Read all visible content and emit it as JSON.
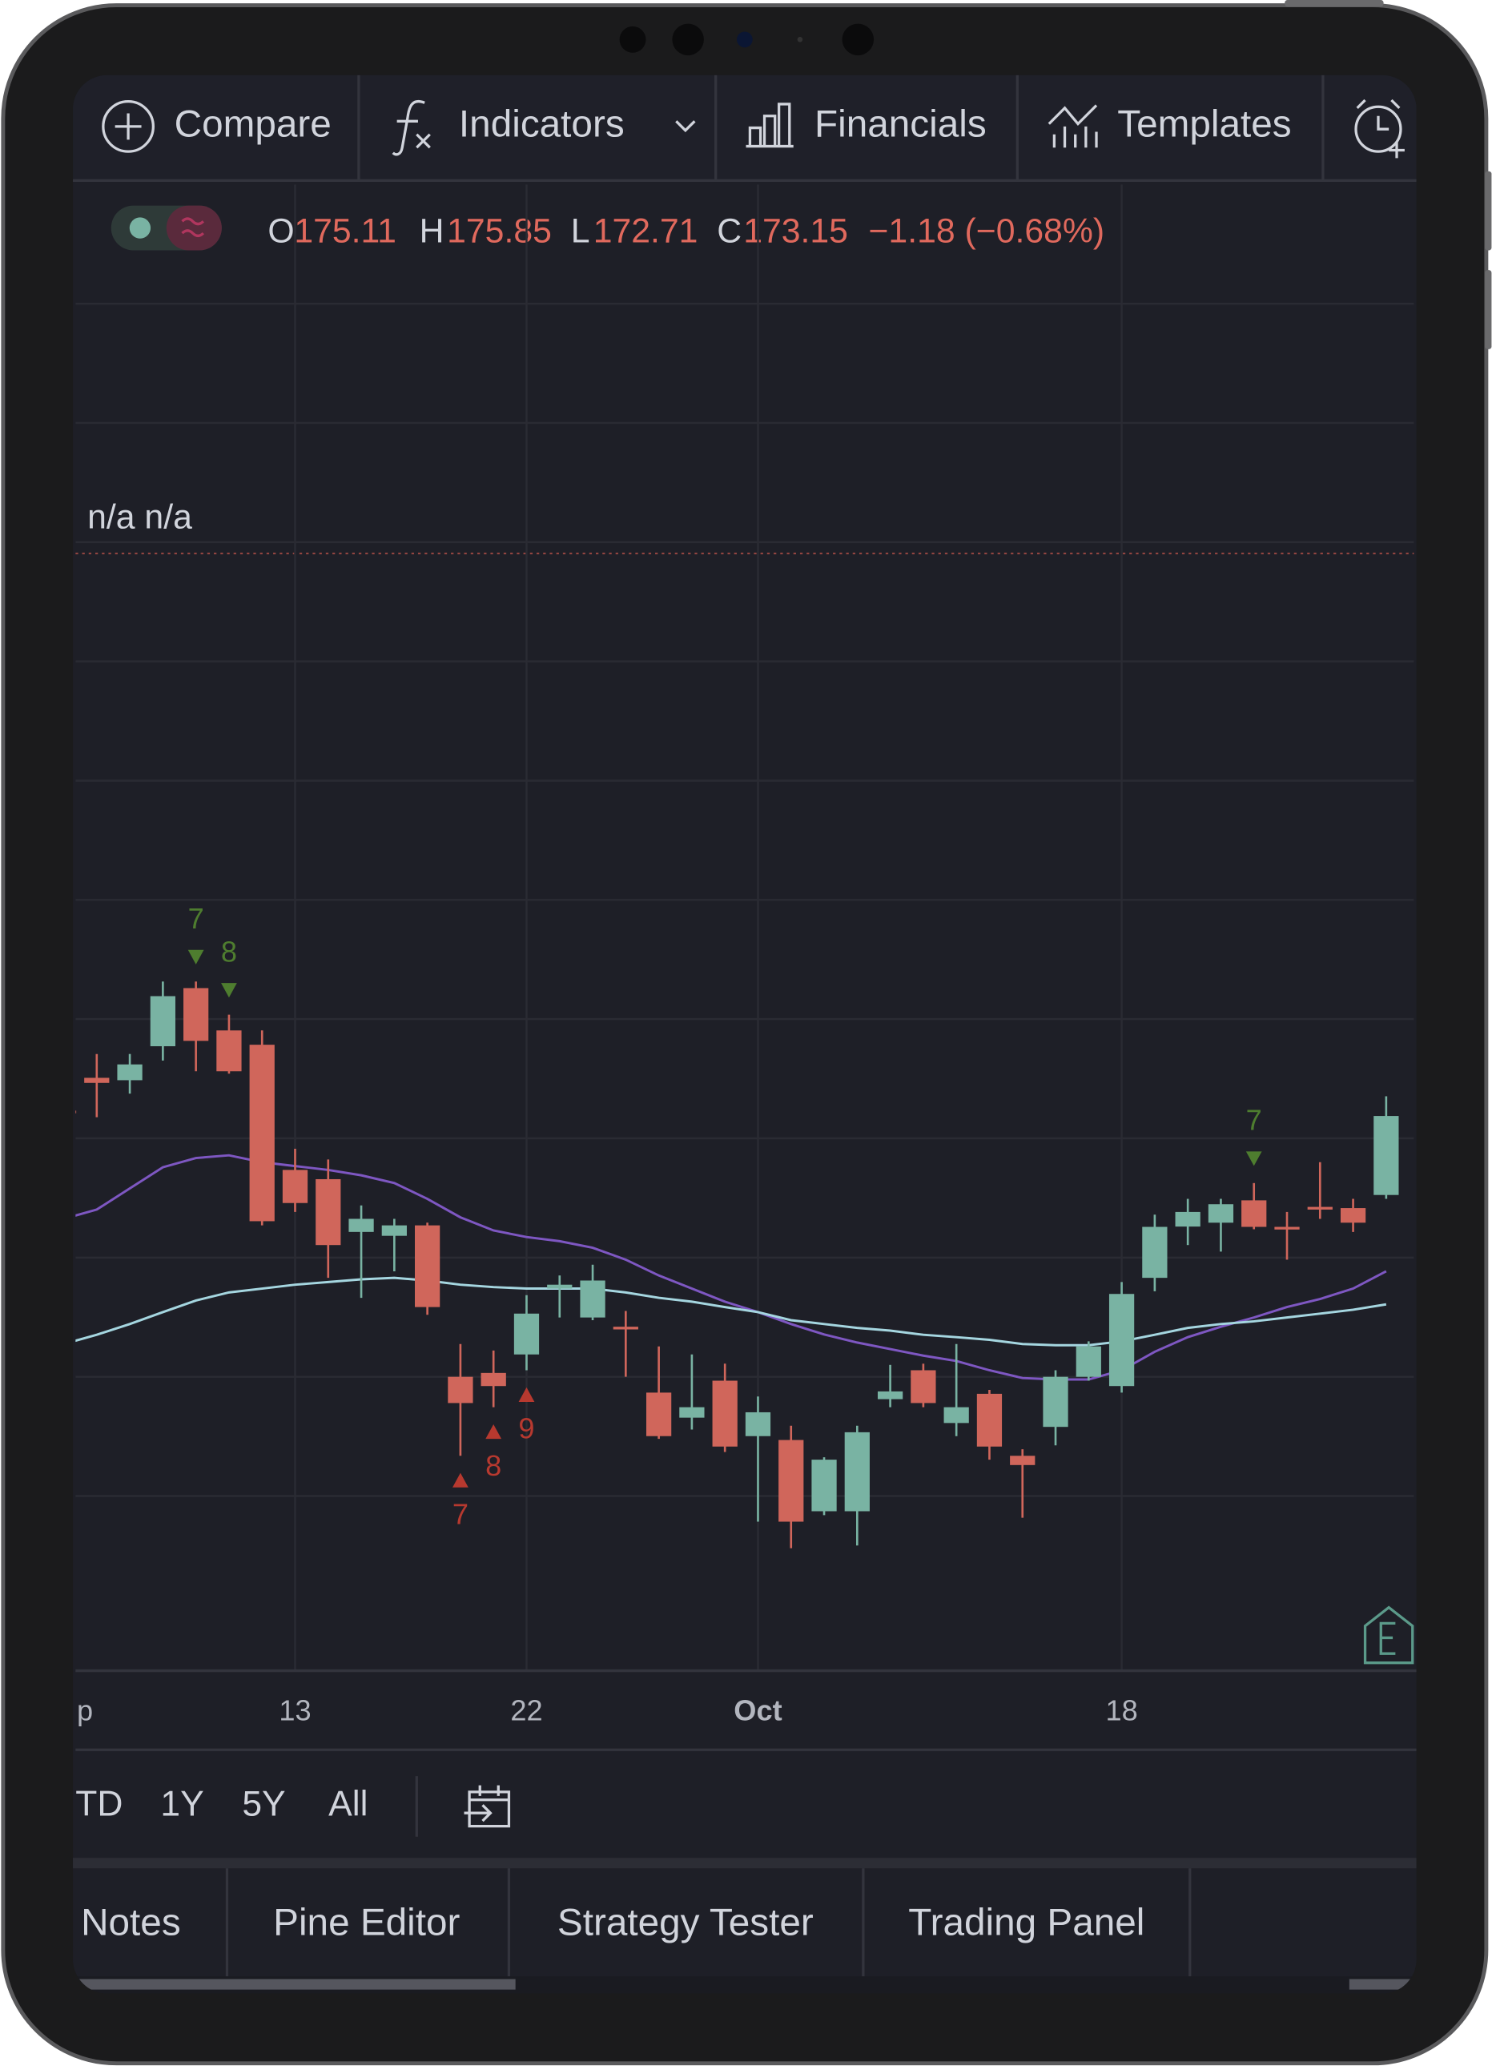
{
  "toolbar": {
    "items": [
      "Compare",
      "Indicators",
      "Financials",
      "Templates"
    ]
  },
  "legend": {
    "open_label": "O",
    "open": 175.11,
    "high_label": "H",
    "high": 175.85,
    "low_label": "L",
    "low": 172.71,
    "close_label": "C",
    "close": 173.15,
    "change": "−1.18 (−0.68%)"
  },
  "status": "n/a n/a",
  "chart_data": {
    "type": "candlestick",
    "categories": [
      "p",
      null,
      null,
      null,
      null,
      null,
      null,
      "13",
      null,
      null,
      null,
      null,
      null,
      null,
      "22",
      null,
      null,
      null,
      null,
      null,
      null,
      "Oct",
      null,
      null,
      null,
      null,
      null,
      null,
      null,
      null,
      null,
      null,
      "18",
      null,
      null,
      null,
      null,
      null,
      null,
      null,
      null
    ],
    "open": [
      152.93,
      154.03,
      153.95,
      155.09,
      157.04,
      155.62,
      155.14,
      150.94,
      150.63,
      148.86,
      148.73,
      149.08,
      144.0,
      144.13,
      144.75,
      146.96,
      145.99,
      145.68,
      143.47,
      142.63,
      143.87,
      142.01,
      141.88,
      139.49,
      139.49,
      143.25,
      144.22,
      142.45,
      143.43,
      141.35,
      142.32,
      144.0,
      143.69,
      147.32,
      149.04,
      149.17,
      149.92,
      149.03,
      149.7,
      149.66,
      150.1
    ],
    "high": [
      153.28,
      154.83,
      154.83,
      157.26,
      157.26,
      156.15,
      155.62,
      151.65,
      151.29,
      149.75,
      149.3,
      149.17,
      145.1,
      144.88,
      146.74,
      147.4,
      147.76,
      146.21,
      145.02,
      144.75,
      144.44,
      143.34,
      142.36,
      141.3,
      142.36,
      144.4,
      144.44,
      145.1,
      143.56,
      141.57,
      144.22,
      145.19,
      147.18,
      149.44,
      149.97,
      149.97,
      150.5,
      149.53,
      151.2,
      149.97,
      153.41
    ],
    "low": [
      152.62,
      152.71,
      153.5,
      154.61,
      154.25,
      154.17,
      149.08,
      149.53,
      147.32,
      146.65,
      147.54,
      146.08,
      141.35,
      142.98,
      144.22,
      145.99,
      145.9,
      144.0,
      141.92,
      142.23,
      141.48,
      139.14,
      138.25,
      139.36,
      138.34,
      142.98,
      142.98,
      142.01,
      141.22,
      139.27,
      141.7,
      143.87,
      143.47,
      146.87,
      148.42,
      148.2,
      148.95,
      147.93,
      149.3,
      148.86,
      149.97
    ],
    "close": [
      152.84,
      153.86,
      154.48,
      156.77,
      155.27,
      154.25,
      149.22,
      149.83,
      148.42,
      149.3,
      149.08,
      146.34,
      143.12,
      143.69,
      146.12,
      147.09,
      147.23,
      145.59,
      142.01,
      142.98,
      141.66,
      142.81,
      139.14,
      141.22,
      142.14,
      143.51,
      143.12,
      142.98,
      141.66,
      141.04,
      144.0,
      145.02,
      146.78,
      149.03,
      149.53,
      149.79,
      149.03,
      148.95,
      149.61,
      149.17,
      152.75
    ],
    "up_color": "#79b3a3",
    "down_color": "#d0665b",
    "lines": [
      {
        "color": "#7e57c2",
        "values": [
          149.3,
          149.61,
          150.32,
          151.03,
          151.34,
          151.43,
          151.2,
          151.07,
          150.94,
          150.76,
          150.5,
          149.97,
          149.35,
          148.91,
          148.69,
          148.55,
          148.33,
          147.93,
          147.4,
          146.96,
          146.52,
          146.17,
          145.77,
          145.42,
          145.15,
          144.93,
          144.71,
          144.53,
          144.22,
          143.96,
          143.91,
          143.91,
          144.22,
          144.84,
          145.33,
          145.68,
          145.99,
          146.34,
          146.61,
          146.96,
          147.54
        ]
      },
      {
        "color": "#a5d6e0",
        "values": [
          145.1,
          145.41,
          145.77,
          146.17,
          146.56,
          146.83,
          146.96,
          147.09,
          147.18,
          147.27,
          147.32,
          147.23,
          147.09,
          147.01,
          146.96,
          146.96,
          146.96,
          146.83,
          146.65,
          146.52,
          146.34,
          146.17,
          145.9,
          145.77,
          145.64,
          145.55,
          145.41,
          145.33,
          145.24,
          145.1,
          145.06,
          145.06,
          145.19,
          145.41,
          145.64,
          145.77,
          145.86,
          145.99,
          146.12,
          146.25,
          146.43
        ]
      }
    ],
    "ylim": [
      134.14,
      184.0
    ],
    "yticks": [
      140,
      144,
      148,
      152,
      156,
      160,
      164,
      168,
      172,
      176,
      180
    ],
    "grid": true,
    "annotations": [
      {
        "x": 4,
        "text": "7",
        "position": "above",
        "color": "#4e7d2f"
      },
      {
        "x": 5,
        "text": "8",
        "position": "above",
        "color": "#4e7d2f"
      },
      {
        "x": 12,
        "text": "7",
        "position": "below",
        "color": "#b7392f"
      },
      {
        "x": 13,
        "text": "8",
        "position": "below",
        "color": "#b7392f"
      },
      {
        "x": 14,
        "text": "9",
        "position": "below",
        "color": "#b7392f"
      },
      {
        "x": 36,
        "text": "7",
        "position": "above",
        "color": "#4e7d2f"
      }
    ]
  },
  "ranges": [
    "TD",
    "1Y",
    "5Y",
    "All"
  ],
  "tabs": [
    "Notes",
    "Pine Editor",
    "Strategy Tester",
    "Trading Panel"
  ]
}
